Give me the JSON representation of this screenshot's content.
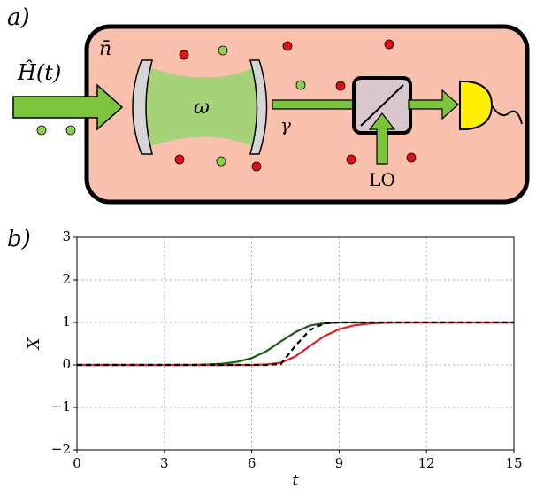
{
  "panel_a": {
    "label": "a)",
    "input": "Ĥ(t)",
    "thermal": "n̄",
    "frequency": "ω",
    "decay": "γ",
    "local_oscillator": "LO"
  },
  "chart_data": {
    "type": "line",
    "label": "b)",
    "xlabel": "t",
    "ylabel": "X",
    "x": [
      0,
      0.5,
      1,
      1.5,
      2,
      2.5,
      3,
      3.5,
      4,
      4.5,
      5,
      5.5,
      6,
      6.5,
      7,
      7.5,
      8,
      8.5,
      9,
      9.5,
      10,
      10.5,
      11,
      11.5,
      12,
      12.5,
      13,
      13.5,
      14,
      14.5,
      15
    ],
    "series": [
      {
        "color": "#1a5c10",
        "linestyle": "solid",
        "values": [
          0,
          0,
          0,
          0,
          0,
          0,
          0,
          0,
          0,
          0.01,
          0.03,
          0.07,
          0.16,
          0.32,
          0.55,
          0.77,
          0.93,
          0.98,
          1,
          1,
          1,
          1,
          1,
          1,
          1,
          1,
          1,
          1,
          1,
          1,
          1
        ]
      },
      {
        "color": "#e02020",
        "linestyle": "solid",
        "values": [
          0,
          0,
          0,
          0,
          0,
          0,
          0,
          0,
          0,
          0,
          0,
          0,
          0,
          0.01,
          0.05,
          0.2,
          0.45,
          0.68,
          0.84,
          0.93,
          0.97,
          0.99,
          1,
          1,
          1,
          1,
          1,
          1,
          1,
          1,
          1
        ]
      },
      {
        "color": "#000000",
        "linestyle": "dashed",
        "values": [
          0,
          0,
          0,
          0,
          0,
          0,
          0,
          0,
          0,
          0,
          0,
          0,
          0,
          0,
          0.02,
          0.45,
          0.82,
          0.98,
          1,
          1,
          1,
          1,
          1,
          1,
          1,
          1,
          1,
          1,
          1,
          1,
          1
        ]
      }
    ],
    "xlim": [
      0,
      15
    ],
    "ylim": [
      -2,
      3
    ],
    "xticks": [
      0,
      3,
      6,
      9,
      12,
      15
    ],
    "yticks": [
      {
        "value": -2,
        "label": "−2"
      },
      {
        "value": -1,
        "label": "−1"
      },
      0,
      1,
      2,
      3
    ],
    "grid": true
  }
}
